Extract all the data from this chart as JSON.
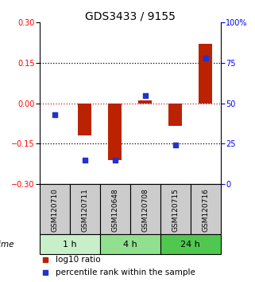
{
  "title": "GDS3433 / 9155",
  "samples": [
    "GSM120710",
    "GSM120711",
    "GSM120648",
    "GSM120708",
    "GSM120715",
    "GSM120716"
  ],
  "groups": [
    {
      "label": "1 h",
      "indices": [
        0,
        1
      ],
      "color": "#c8f0c8"
    },
    {
      "label": "4 h",
      "indices": [
        2,
        3
      ],
      "color": "#90e090"
    },
    {
      "label": "24 h",
      "indices": [
        4,
        5
      ],
      "color": "#50c850"
    }
  ],
  "log10_ratio": [
    0.0,
    -0.12,
    -0.21,
    0.01,
    -0.085,
    0.22
  ],
  "percentile_rank": [
    43,
    15,
    15,
    55,
    24,
    78
  ],
  "ylim_left": [
    -0.3,
    0.3
  ],
  "ylim_right": [
    0,
    100
  ],
  "yticks_left": [
    -0.3,
    -0.15,
    0,
    0.15,
    0.3
  ],
  "yticks_right": [
    0,
    25,
    50,
    75,
    100
  ],
  "bar_color": "#bb2200",
  "dot_color": "#2233cc",
  "zero_line_color": "#cc2222",
  "bg_color": "white",
  "sample_box_color": "#cccccc",
  "title_fontsize": 10,
  "tick_fontsize": 7,
  "label_fontsize": 6.5,
  "legend_fontsize": 7.5,
  "time_label": "time",
  "legend_items": [
    "log10 ratio",
    "percentile rank within the sample"
  ]
}
